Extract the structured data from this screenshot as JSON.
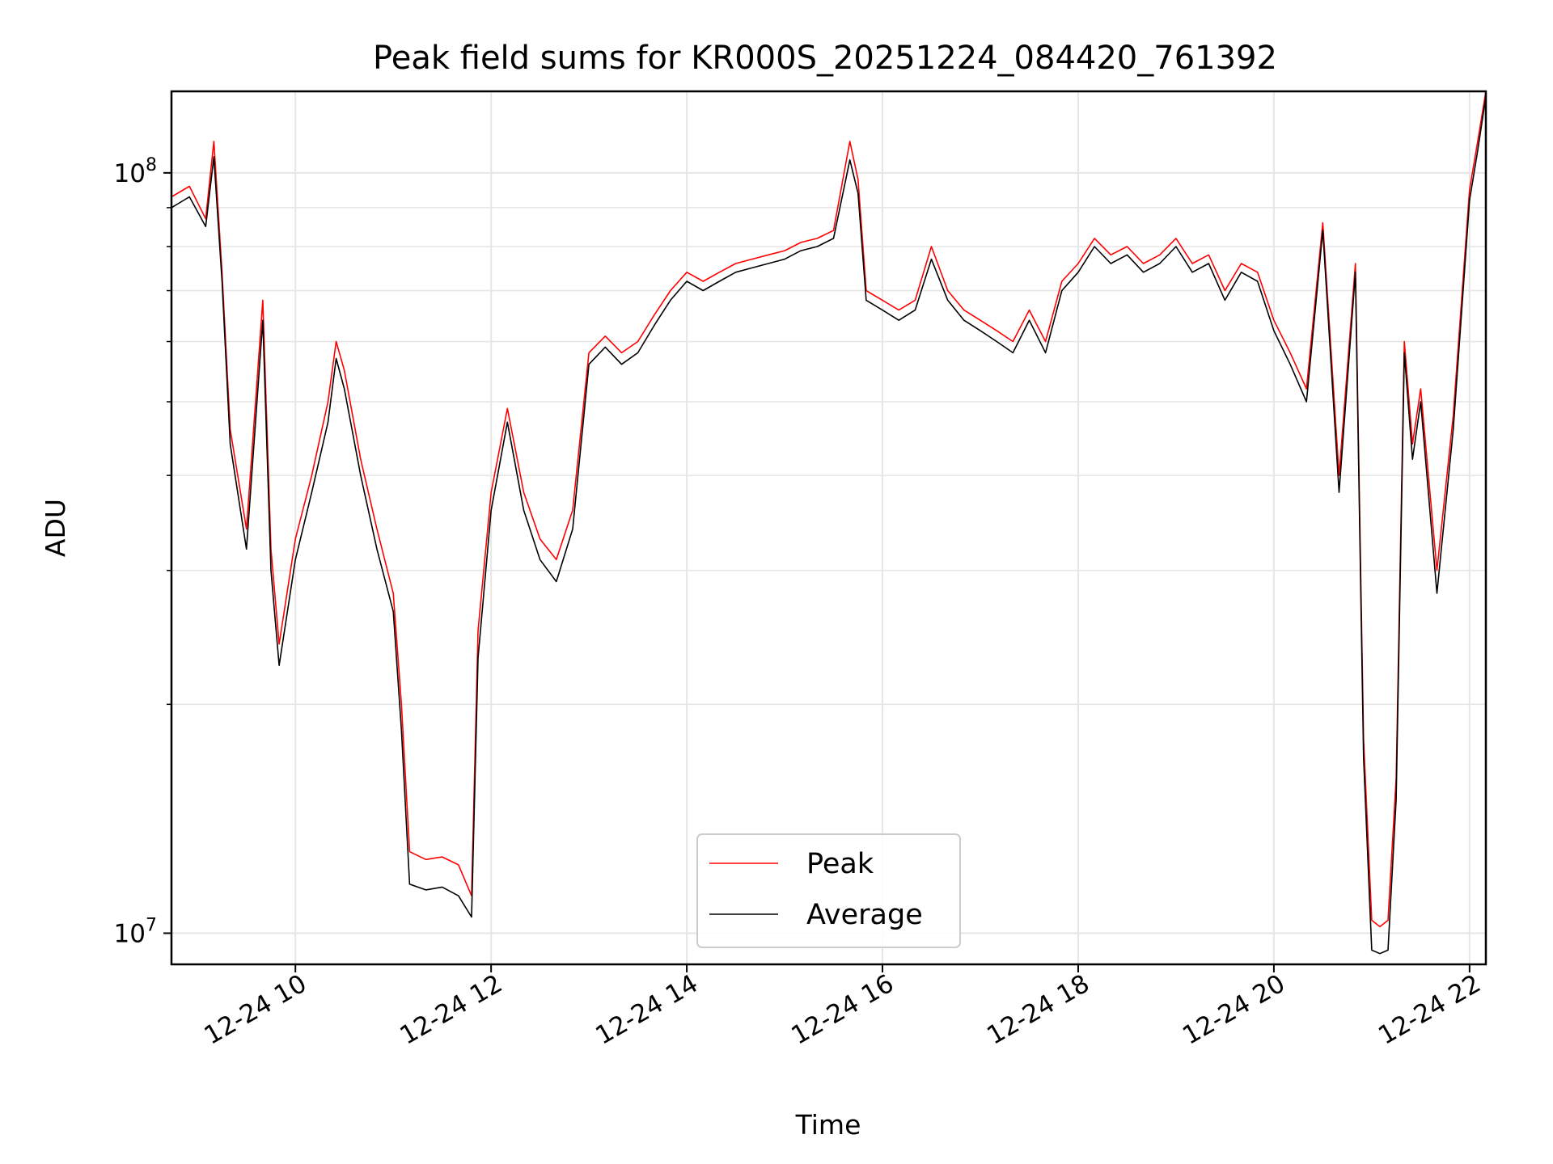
{
  "chart_data": {
    "type": "line",
    "title": "Peak field sums for KR000S_20251224_084420_761392",
    "xlabel": "Time",
    "ylabel": "ADU",
    "yscale": "log",
    "xlim": [
      "2025-12-24 08:44",
      "2025-12-24 22:10"
    ],
    "ylim": [
      9100000,
      128000000
    ],
    "grid": true,
    "legend_position": "lower-center",
    "x_ticks": [
      "12-24 10",
      "12-24 12",
      "12-24 14",
      "12-24 16",
      "12-24 18",
      "12-24 20",
      "12-24 22"
    ],
    "x_tick_times": [
      "2025-12-24 10:00",
      "2025-12-24 12:00",
      "2025-12-24 14:00",
      "2025-12-24 16:00",
      "2025-12-24 18:00",
      "2025-12-24 20:00",
      "2025-12-24 22:00"
    ],
    "y_ticks": [
      {
        "value": 10000000,
        "base": "10",
        "exp": "7"
      },
      {
        "value": 100000000,
        "base": "10",
        "exp": "8"
      }
    ],
    "x": [
      "08:44",
      "08:55",
      "09:05",
      "09:10",
      "09:15",
      "09:20",
      "09:30",
      "09:40",
      "09:45",
      "09:50",
      "10:00",
      "10:10",
      "10:20",
      "10:25",
      "10:30",
      "10:40",
      "10:50",
      "11:00",
      "11:05",
      "11:10",
      "11:20",
      "11:30",
      "11:40",
      "11:48",
      "11:52",
      "12:00",
      "12:10",
      "12:20",
      "12:30",
      "12:40",
      "12:50",
      "13:00",
      "13:10",
      "13:20",
      "13:30",
      "13:40",
      "13:50",
      "14:00",
      "14:10",
      "14:20",
      "14:30",
      "14:40",
      "14:50",
      "15:00",
      "15:10",
      "15:20",
      "15:30",
      "15:40",
      "15:45",
      "15:50",
      "16:00",
      "16:10",
      "16:20",
      "16:30",
      "16:40",
      "16:50",
      "17:00",
      "17:10",
      "17:20",
      "17:30",
      "17:40",
      "17:50",
      "18:00",
      "18:10",
      "18:20",
      "18:30",
      "18:40",
      "18:50",
      "19:00",
      "19:10",
      "19:20",
      "19:30",
      "19:40",
      "19:50",
      "20:00",
      "20:10",
      "20:20",
      "20:30",
      "20:40",
      "20:50",
      "20:55",
      "21:00",
      "21:05",
      "21:10",
      "21:15",
      "21:20",
      "21:25",
      "21:30",
      "21:40",
      "21:50",
      "22:00",
      "22:05",
      "22:10"
    ],
    "series": [
      {
        "name": "Peak",
        "color": "#ff0000",
        "values": [
          93000000,
          96000000,
          87000000,
          110000000,
          74000000,
          46000000,
          34000000,
          68000000,
          32000000,
          24000000,
          33000000,
          40000000,
          50000000,
          60000000,
          55000000,
          42000000,
          34000000,
          28000000,
          20000000,
          12800000,
          12500000,
          12600000,
          12300000,
          11200000,
          25000000,
          38000000,
          49000000,
          38000000,
          33000000,
          31000000,
          36000000,
          58000000,
          61000000,
          58000000,
          60000000,
          65000000,
          70000000,
          74000000,
          72000000,
          74000000,
          76000000,
          77000000,
          78000000,
          79000000,
          81000000,
          82000000,
          84000000,
          110000000,
          98000000,
          70000000,
          68000000,
          66000000,
          68000000,
          80000000,
          70000000,
          66000000,
          64000000,
          62000000,
          60000000,
          66000000,
          60000000,
          72000000,
          76000000,
          82000000,
          78000000,
          80000000,
          76000000,
          78000000,
          82000000,
          76000000,
          78000000,
          70000000,
          76000000,
          74000000,
          64000000,
          58000000,
          52000000,
          86000000,
          40000000,
          76000000,
          18000000,
          10400000,
          10200000,
          10400000,
          16000000,
          60000000,
          44000000,
          52000000,
          30000000,
          48000000,
          95000000,
          110000000,
          128000000
        ]
      },
      {
        "name": "Average",
        "color": "#000000",
        "values": [
          90000000,
          93000000,
          85000000,
          105000000,
          72000000,
          44000000,
          32000000,
          64000000,
          30000000,
          22500000,
          31000000,
          38000000,
          47000000,
          57000000,
          52000000,
          40000000,
          32000000,
          26500000,
          18500000,
          11600000,
          11400000,
          11500000,
          11200000,
          10500000,
          23000000,
          36000000,
          47000000,
          36000000,
          31000000,
          29000000,
          34000000,
          56000000,
          59000000,
          56000000,
          58000000,
          63000000,
          68000000,
          72000000,
          70000000,
          72000000,
          74000000,
          75000000,
          76000000,
          77000000,
          79000000,
          80000000,
          82000000,
          104000000,
          94000000,
          68000000,
          66000000,
          64000000,
          66000000,
          77000000,
          68000000,
          64000000,
          62000000,
          60000000,
          58000000,
          64000000,
          58000000,
          70000000,
          74000000,
          80000000,
          76000000,
          78000000,
          74000000,
          76000000,
          80000000,
          74000000,
          76000000,
          68000000,
          74000000,
          72000000,
          62000000,
          56000000,
          50000000,
          84000000,
          38000000,
          74000000,
          17000000,
          9500000,
          9400000,
          9500000,
          15000000,
          58000000,
          42000000,
          50000000,
          28000000,
          46000000,
          92000000,
          107000000,
          126000000
        ]
      }
    ]
  }
}
